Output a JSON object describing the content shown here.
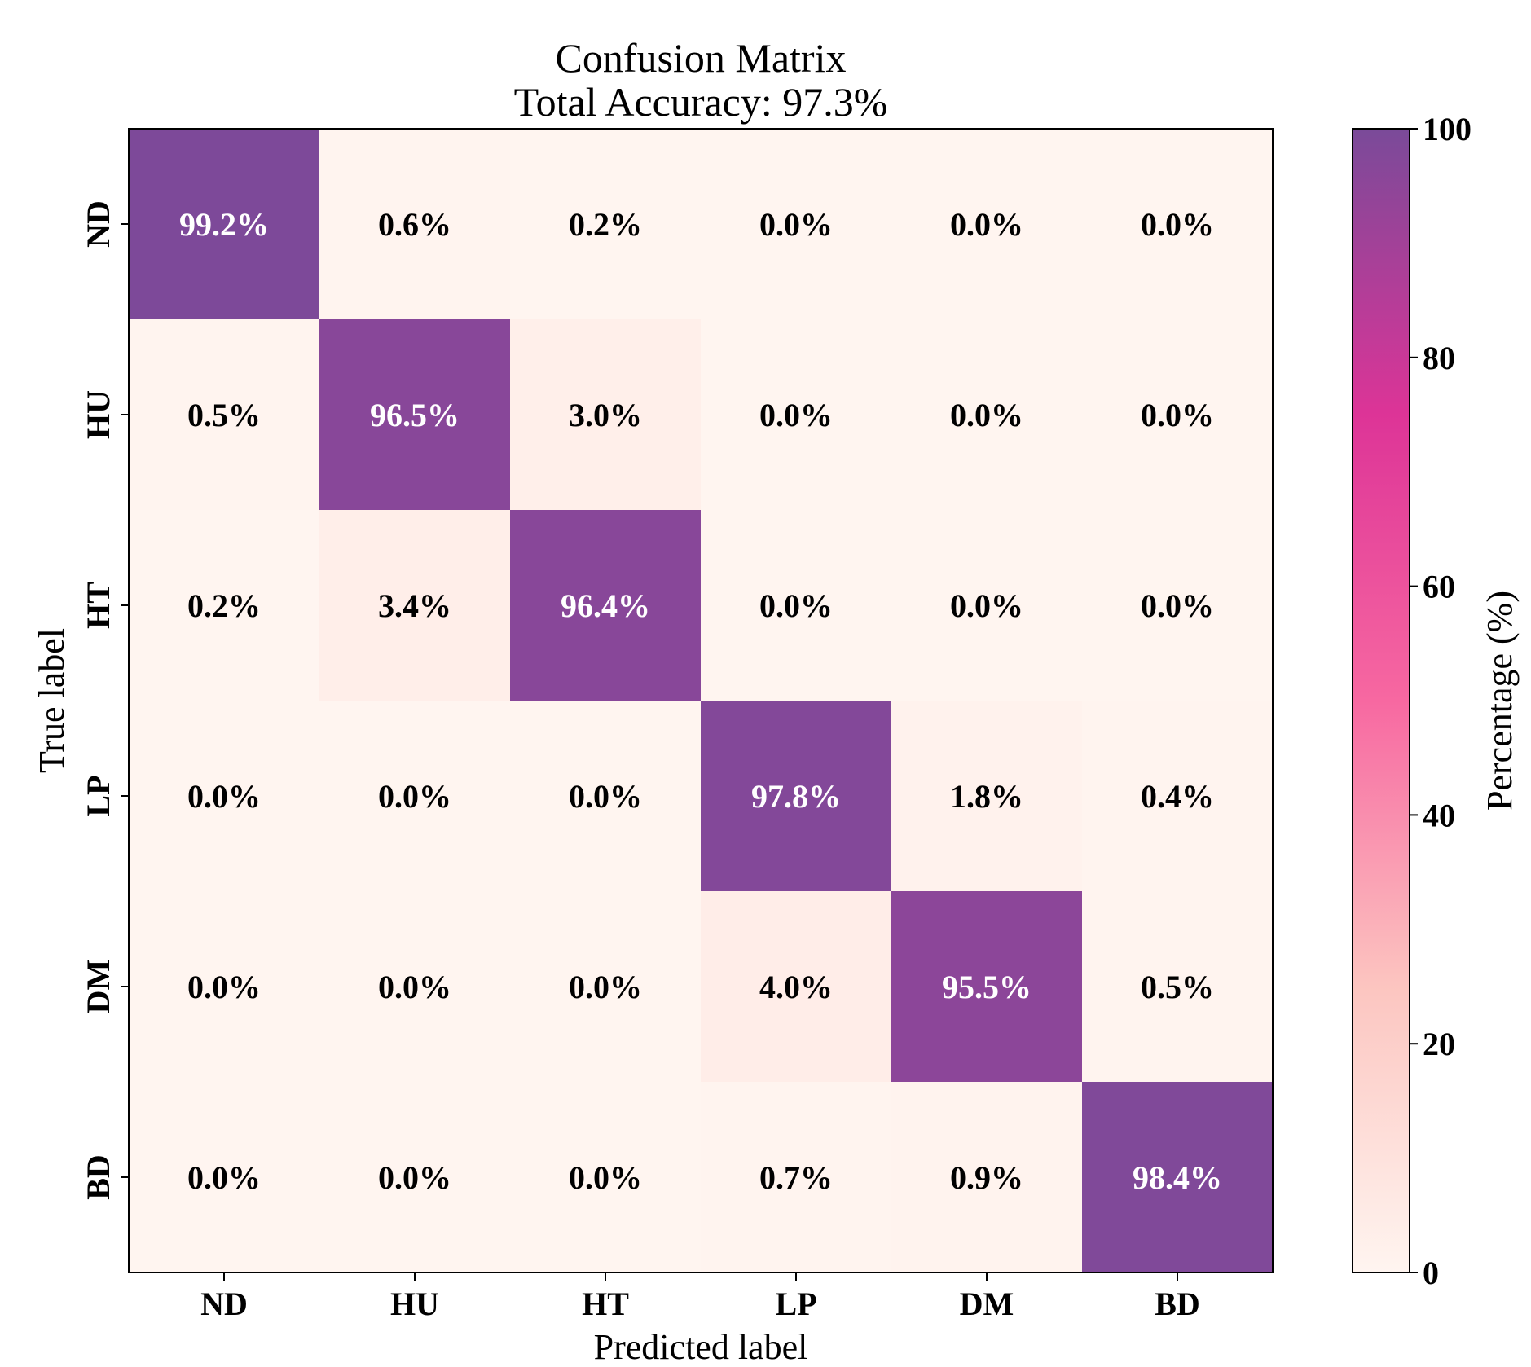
{
  "chart_data": {
    "type": "heatmap",
    "title": "Confusion Matrix",
    "subtitle": "Total Accuracy: 97.3%",
    "xlabel": "Predicted label",
    "ylabel": "True label",
    "x_categories": [
      "ND",
      "HU",
      "HT",
      "LP",
      "DM",
      "BD"
    ],
    "y_categories": [
      "ND",
      "HU",
      "HT",
      "LP",
      "DM",
      "BD"
    ],
    "values": [
      [
        99.2,
        0.6,
        0.2,
        0.0,
        0.0,
        0.0
      ],
      [
        0.5,
        96.5,
        3.0,
        0.0,
        0.0,
        0.0
      ],
      [
        0.2,
        3.4,
        96.4,
        0.0,
        0.0,
        0.0
      ],
      [
        0.0,
        0.0,
        0.0,
        97.8,
        1.8,
        0.4
      ],
      [
        0.0,
        0.0,
        0.0,
        4.0,
        95.5,
        0.5
      ],
      [
        0.0,
        0.0,
        0.0,
        0.7,
        0.9,
        98.4
      ]
    ],
    "value_format": "{v}%",
    "colorbar": {
      "label": "Percentage (%)",
      "range": [
        0,
        100
      ],
      "ticks": [
        "0",
        "20",
        "40",
        "60",
        "80",
        "100"
      ],
      "colors": [
        "#fff5f0",
        "#fcc5c0",
        "#f768a1",
        "#dd3497",
        "#7a4a99"
      ]
    }
  }
}
